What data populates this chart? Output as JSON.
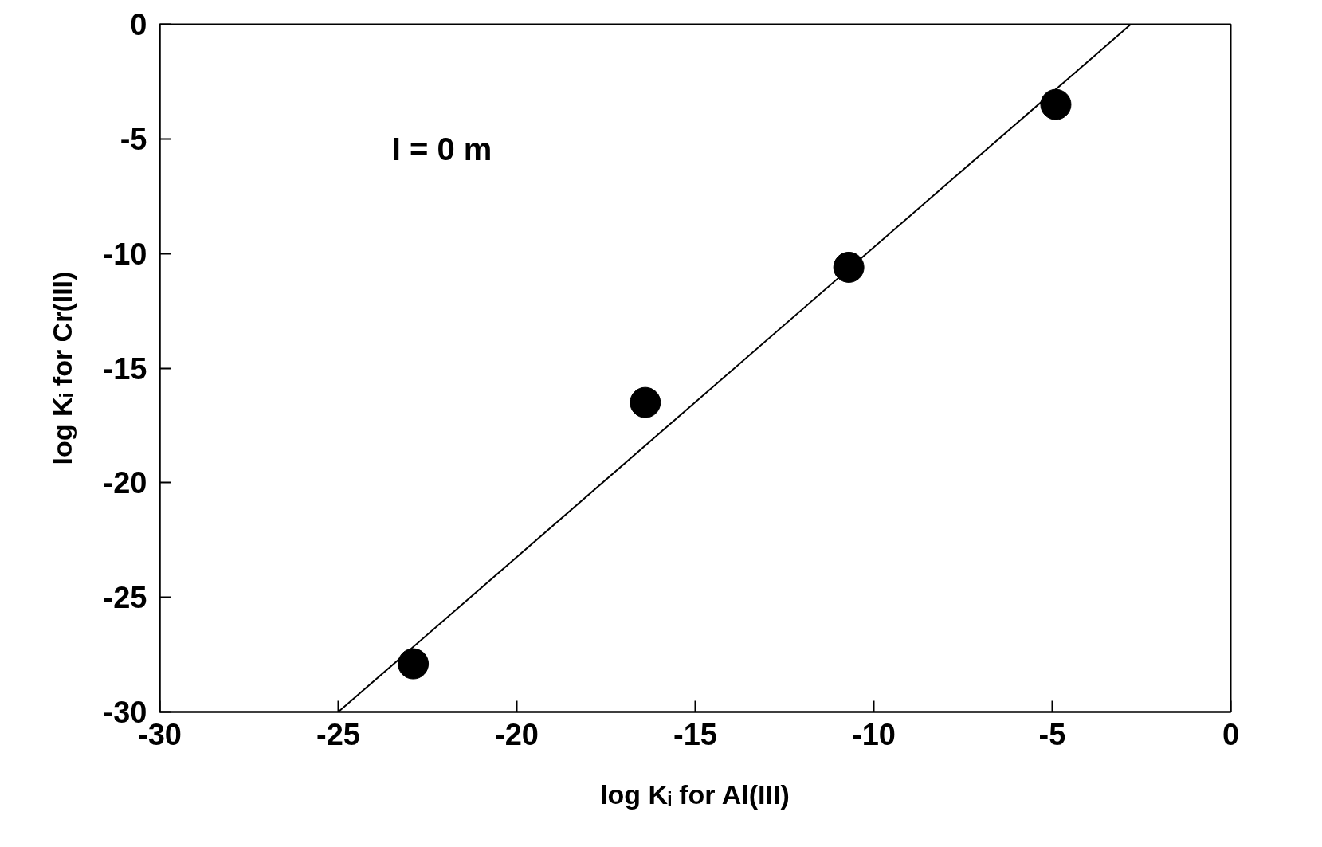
{
  "chart_data": {
    "type": "scatter",
    "xlabel": "log Kᵢ for Al(III)",
    "ylabel": "log Kᵢ for Cr(III)",
    "annotations": [
      "I = 0 m"
    ],
    "xlim": [
      -30,
      0
    ],
    "ylim": [
      -30,
      0
    ],
    "xticks": [
      -30,
      -25,
      -20,
      -15,
      -10,
      -5,
      0
    ],
    "yticks": [
      -30,
      -25,
      -20,
      -15,
      -10,
      -5,
      0
    ],
    "grid": false,
    "marker": "circle",
    "series": [
      {
        "color": "#000000",
        "x": [
          -22.9,
          -16.4,
          -10.7,
          -4.9
        ],
        "values": [
          -27.9,
          -16.5,
          -10.6,
          -3.5
        ]
      },
      {
        "type": "line",
        "color": "#000000",
        "marker": "none",
        "line_style": "solid",
        "x": [
          -25.0,
          -2.8
        ],
        "values": [
          -30,
          0
        ]
      }
    ]
  }
}
